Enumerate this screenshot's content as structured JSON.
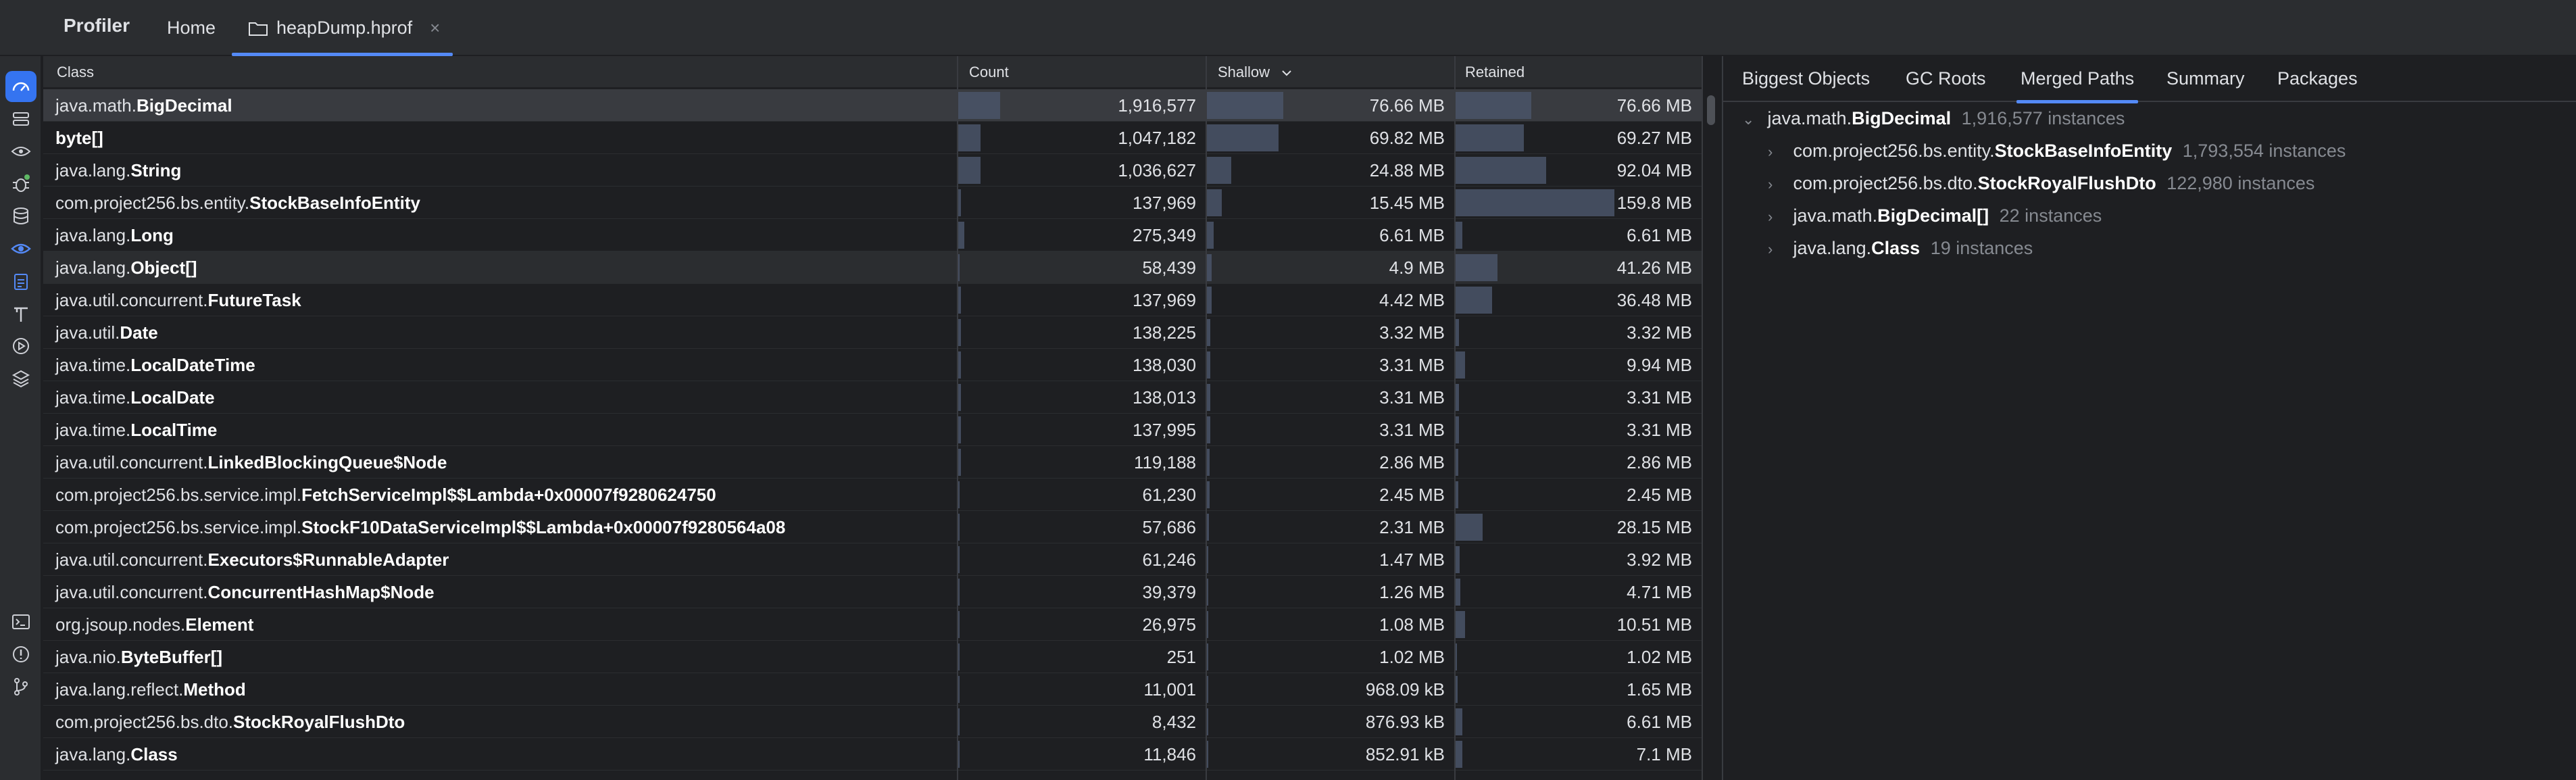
{
  "app": {
    "title": "Profiler"
  },
  "tabs": [
    {
      "label": "Home"
    },
    {
      "label": "heapDump.hprof"
    }
  ],
  "table": {
    "headers": {
      "class": "Class",
      "count": "Count",
      "shallow": "Shallow",
      "retained": "Retained"
    },
    "sort_indicator": "chevron-down-icon",
    "rows": [
      {
        "pkg": "java.math.",
        "cls": "BigDecimal",
        "count": "1,916,577",
        "shallow": "76.66 MB",
        "retained": "76.66 MB",
        "count_frac": 0.17,
        "shallow_frac": 0.31,
        "retained_frac": 0.31
      },
      {
        "pkg": "",
        "cls": "byte[]",
        "count": "1,047,182",
        "shallow": "69.82 MB",
        "retained": "69.27 MB",
        "count_frac": 0.09,
        "shallow_frac": 0.29,
        "retained_frac": 0.28
      },
      {
        "pkg": "java.lang.",
        "cls": "String",
        "count": "1,036,627",
        "shallow": "24.88 MB",
        "retained": "92.04 MB",
        "count_frac": 0.09,
        "shallow_frac": 0.1,
        "retained_frac": 0.37
      },
      {
        "pkg": "com.project256.bs.entity.",
        "cls": "StockBaseInfoEntity",
        "count": "137,969",
        "shallow": "15.45 MB",
        "retained": "159.8 MB",
        "count_frac": 0.012,
        "shallow_frac": 0.06,
        "retained_frac": 0.65
      },
      {
        "pkg": "java.lang.",
        "cls": "Long",
        "count": "275,349",
        "shallow": "6.61 MB",
        "retained": "6.61 MB",
        "count_frac": 0.025,
        "shallow_frac": 0.027,
        "retained_frac": 0.027
      },
      {
        "pkg": "java.lang.",
        "cls": "Object[]",
        "count": "58,439",
        "shallow": "4.9 MB",
        "retained": "41.26 MB",
        "count_frac": 0.005,
        "shallow_frac": 0.02,
        "retained_frac": 0.17
      },
      {
        "pkg": "java.util.concurrent.",
        "cls": "FutureTask",
        "count": "137,969",
        "shallow": "4.42 MB",
        "retained": "36.48 MB",
        "count_frac": 0.012,
        "shallow_frac": 0.018,
        "retained_frac": 0.15
      },
      {
        "pkg": "java.util.",
        "cls": "Date",
        "count": "138,225",
        "shallow": "3.32 MB",
        "retained": "3.32 MB",
        "count_frac": 0.012,
        "shallow_frac": 0.013,
        "retained_frac": 0.013
      },
      {
        "pkg": "java.time.",
        "cls": "LocalDateTime",
        "count": "138,030",
        "shallow": "3.31 MB",
        "retained": "9.94 MB",
        "count_frac": 0.012,
        "shallow_frac": 0.013,
        "retained_frac": 0.04
      },
      {
        "pkg": "java.time.",
        "cls": "LocalDate",
        "count": "138,013",
        "shallow": "3.31 MB",
        "retained": "3.31 MB",
        "count_frac": 0.012,
        "shallow_frac": 0.013,
        "retained_frac": 0.013
      },
      {
        "pkg": "java.time.",
        "cls": "LocalTime",
        "count": "137,995",
        "shallow": "3.31 MB",
        "retained": "3.31 MB",
        "count_frac": 0.012,
        "shallow_frac": 0.013,
        "retained_frac": 0.013
      },
      {
        "pkg": "java.util.concurrent.",
        "cls": "LinkedBlockingQueue$Node",
        "count": "119,188",
        "shallow": "2.86 MB",
        "retained": "2.86 MB",
        "count_frac": 0.01,
        "shallow_frac": 0.012,
        "retained_frac": 0.012
      },
      {
        "pkg": "com.project256.bs.service.impl.",
        "cls": "FetchServiceImpl$$Lambda+0x00007f9280624750",
        "count": "61,230",
        "shallow": "2.45 MB",
        "retained": "2.45 MB",
        "count_frac": 0.005,
        "shallow_frac": 0.01,
        "retained_frac": 0.01
      },
      {
        "pkg": "com.project256.bs.service.impl.",
        "cls": "StockF10DataServiceImpl$$Lambda+0x00007f9280564a08",
        "count": "57,686",
        "shallow": "2.31 MB",
        "retained": "28.15 MB",
        "count_frac": 0.005,
        "shallow_frac": 0.009,
        "retained_frac": 0.11
      },
      {
        "pkg": "java.util.concurrent.",
        "cls": "Executors$RunnableAdapter",
        "count": "61,246",
        "shallow": "1.47 MB",
        "retained": "3.92 MB",
        "count_frac": 0.005,
        "shallow_frac": 0.006,
        "retained_frac": 0.016
      },
      {
        "pkg": "java.util.concurrent.",
        "cls": "ConcurrentHashMap$Node",
        "count": "39,379",
        "shallow": "1.26 MB",
        "retained": "4.71 MB",
        "count_frac": 0.004,
        "shallow_frac": 0.005,
        "retained_frac": 0.02
      },
      {
        "pkg": "org.jsoup.nodes.",
        "cls": "Element",
        "count": "26,975",
        "shallow": "1.08 MB",
        "retained": "10.51 MB",
        "count_frac": 0.003,
        "shallow_frac": 0.004,
        "retained_frac": 0.04
      },
      {
        "pkg": "java.nio.",
        "cls": "ByteBuffer[]",
        "count": "251",
        "shallow": "1.02 MB",
        "retained": "1.02 MB",
        "count_frac": 0.001,
        "shallow_frac": 0.004,
        "retained_frac": 0.004
      },
      {
        "pkg": "java.lang.reflect.",
        "cls": "Method",
        "count": "11,001",
        "shallow": "968.09 kB",
        "retained": "1.65 MB",
        "count_frac": 0.001,
        "shallow_frac": 0.004,
        "retained_frac": 0.007
      },
      {
        "pkg": "com.project256.bs.dto.",
        "cls": "StockRoyalFlushDto",
        "count": "8,432",
        "shallow": "876.93 kB",
        "retained": "6.61 MB",
        "count_frac": 0.001,
        "shallow_frac": 0.003,
        "retained_frac": 0.027
      },
      {
        "pkg": "java.lang.",
        "cls": "Class",
        "count": "11,846",
        "shallow": "852.91 kB",
        "retained": "7.1 MB",
        "count_frac": 0.001,
        "shallow_frac": 0.003,
        "retained_frac": 0.029
      }
    ]
  },
  "right_panel": {
    "tabs": [
      {
        "label": "Biggest Objects"
      },
      {
        "label": "GC Roots"
      },
      {
        "label": "Merged Paths"
      },
      {
        "label": "Summary"
      },
      {
        "label": "Packages"
      }
    ],
    "active_tab": "Merged Paths",
    "tree": {
      "root": {
        "pkg": "java.math.",
        "cls": "BigDecimal",
        "instances": "1,916,577 instances"
      },
      "children": [
        {
          "pkg": "com.project256.bs.entity.",
          "cls": "StockBaseInfoEntity",
          "instances": "1,793,554 instances"
        },
        {
          "pkg": "com.project256.bs.dto.",
          "cls": "StockRoyalFlushDto",
          "instances": "122,980 instances"
        },
        {
          "pkg": "java.math.",
          "cls": "BigDecimal[]",
          "instances": "22 instances"
        },
        {
          "pkg": "java.lang.",
          "cls": "Class",
          "instances": "19 instances"
        }
      ]
    }
  },
  "rail_icons": [
    "dashboard-icon",
    "server-icon",
    "eye-icon",
    "bug-icon",
    "database-icon",
    "eye-target-icon",
    "clipboard-icon",
    "build-icon",
    "run-icon",
    "layers-icon",
    "terminal-icon",
    "problems-icon",
    "git-branch-icon"
  ],
  "colors": {
    "accent": "#548af7",
    "active_rail": "#3574f0",
    "bar": "#4a5568"
  }
}
